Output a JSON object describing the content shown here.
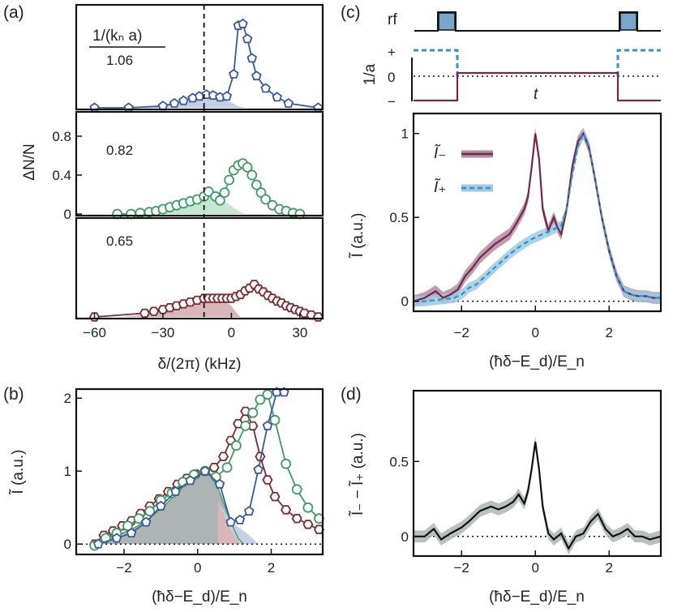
{
  "colors": {
    "blue": "#3a5a96",
    "blue_fill": "#c5d0e4",
    "green": "#3f9a68",
    "green_fill": "#c7e6d2",
    "red": "#7a2a33",
    "red_fill": "#d8b6ba",
    "purple_line": "#6e2a4a",
    "purple_band": "#b58aa2",
    "cyan_line": "#3a8fc0",
    "cyan_band": "#9ccbe3",
    "gray_fill": "#aeb4b4",
    "black": "#111111",
    "rf_pulse": "#7aa6cc"
  },
  "chart_data": [
    {
      "id": "a",
      "type": "line",
      "panel_label": "(a)",
      "xlabel": "δ/(2π) (kHz)",
      "ylabel": "ΔN/N",
      "xlim": [
        -68,
        40
      ],
      "xticks": [
        -60,
        -30,
        0,
        30
      ],
      "xtick_labels": [
        "−60",
        "−30",
        "0",
        "30"
      ],
      "ylim": [
        0,
        1
      ],
      "yticks": [
        0,
        0.4,
        0.8
      ],
      "ytick_labels": [
        "0",
        "0.4",
        "0.8"
      ],
      "legend_title": "1/(kₙ a)",
      "dashed_line_x": -12,
      "series": [
        {
          "name": "1.06",
          "color": "blue",
          "marker": "pentagon",
          "x": [
            -60,
            -45,
            -30,
            -25,
            -21,
            -17,
            -14,
            -11,
            -8,
            -5,
            -2,
            1,
            3,
            5,
            7,
            9,
            11,
            15,
            20,
            25,
            38
          ],
          "y": [
            0.0,
            0.0,
            0.02,
            0.05,
            0.08,
            0.11,
            0.13,
            0.15,
            0.14,
            0.12,
            0.13,
            0.38,
            0.93,
            0.95,
            0.78,
            0.56,
            0.36,
            0.22,
            0.12,
            0.05,
            0.0
          ],
          "fill_x": [
            -50,
            -40,
            -32,
            -26,
            -22,
            -18,
            -15,
            -12,
            -9,
            -6,
            -3,
            0,
            2,
            4,
            6
          ],
          "fill_y": [
            0.0,
            0.01,
            0.02,
            0.04,
            0.07,
            0.1,
            0.14,
            0.17,
            0.15,
            0.12,
            0.09,
            0.06,
            0.03,
            0.01,
            0.0
          ]
        },
        {
          "name": "0.82",
          "color": "green",
          "marker": "circle",
          "x": [
            -50,
            -44,
            -40,
            -36,
            -33,
            -30,
            -27,
            -24,
            -21,
            -18,
            -15,
            -12,
            -10,
            -7,
            -5,
            -3,
            -1,
            1,
            3,
            5,
            7,
            9,
            11,
            13,
            15,
            18,
            21,
            24,
            27,
            30
          ],
          "y": [
            0.0,
            0.0,
            0.01,
            0.02,
            0.03,
            0.05,
            0.07,
            0.09,
            0.11,
            0.13,
            0.15,
            0.18,
            0.23,
            0.18,
            0.14,
            0.22,
            0.35,
            0.45,
            0.5,
            0.52,
            0.48,
            0.4,
            0.3,
            0.22,
            0.15,
            0.09,
            0.05,
            0.03,
            0.01,
            0.0
          ],
          "fill_x": [
            -50,
            -40,
            -33,
            -28,
            -24,
            -20,
            -16,
            -13,
            -10,
            -7,
            -4,
            -1,
            2,
            4,
            6
          ],
          "fill_y": [
            0.0,
            0.01,
            0.03,
            0.06,
            0.09,
            0.12,
            0.16,
            0.2,
            0.24,
            0.2,
            0.15,
            0.1,
            0.05,
            0.02,
            0.0
          ]
        },
        {
          "name": "0.65",
          "color": "red",
          "marker": "hexagon",
          "x": [
            -60,
            -38,
            -34,
            -30,
            -27,
            -24,
            -21,
            -18,
            -15,
            -12,
            -10,
            -8,
            -6,
            -4,
            -2,
            0,
            2,
            4,
            6,
            8,
            10,
            12,
            14,
            16,
            18,
            20,
            22,
            24,
            26,
            28,
            30,
            32,
            35,
            38
          ],
          "y": [
            0.0,
            0.04,
            0.06,
            0.08,
            0.1,
            0.12,
            0.14,
            0.16,
            0.18,
            0.2,
            0.2,
            0.2,
            0.2,
            0.2,
            0.2,
            0.2,
            0.22,
            0.24,
            0.28,
            0.31,
            0.35,
            0.3,
            0.27,
            0.23,
            0.2,
            0.17,
            0.15,
            0.12,
            0.1,
            0.08,
            0.06,
            0.04,
            0.02,
            0.0
          ],
          "fill_x": [
            -48,
            -40,
            -34,
            -28,
            -24,
            -20,
            -16,
            -12,
            -8,
            -4,
            0,
            2,
            4
          ],
          "fill_y": [
            0.0,
            0.02,
            0.05,
            0.09,
            0.13,
            0.17,
            0.2,
            0.22,
            0.22,
            0.19,
            0.12,
            0.05,
            0.0
          ]
        }
      ]
    },
    {
      "id": "b",
      "type": "line",
      "panel_label": "(b)",
      "xlabel": "(ħδ−E_d)/E_n",
      "ylabel": "Ĩ (a.u.)",
      "xlim": [
        -3.3,
        3.4
      ],
      "xticks": [
        -2,
        0,
        2
      ],
      "xtick_labels": [
        "−2",
        "0",
        "2"
      ],
      "ylim": [
        -0.12,
        2.08
      ],
      "yticks": [
        0,
        1,
        2
      ],
      "ytick_labels": [
        "0",
        "1",
        "2"
      ],
      "series": [
        {
          "name": "0.65",
          "color": "red",
          "marker": "hexagon",
          "x": [
            -2.8,
            -2.55,
            -2.3,
            -2.05,
            -1.8,
            -1.55,
            -1.3,
            -1.05,
            -0.8,
            -0.55,
            -0.3,
            -0.05,
            0.2,
            0.45,
            0.7,
            0.9,
            1.1,
            1.3,
            1.5,
            1.7,
            1.9,
            2.1,
            2.4,
            2.7,
            3.0,
            3.3
          ],
          "y": [
            0.0,
            0.12,
            0.18,
            0.25,
            0.32,
            0.42,
            0.52,
            0.62,
            0.72,
            0.82,
            0.9,
            0.96,
            1.0,
            1.05,
            1.2,
            1.42,
            1.65,
            1.82,
            1.62,
            1.2,
            0.88,
            0.65,
            0.47,
            0.35,
            0.27,
            0.2
          ]
        },
        {
          "name": "0.82",
          "color": "green",
          "marker": "circle",
          "x": [
            -2.8,
            -2.5,
            -2.2,
            -1.9,
            -1.6,
            -1.3,
            -1.0,
            -0.7,
            -0.4,
            -0.1,
            0.2,
            0.5,
            0.8,
            1.05,
            1.3,
            1.5,
            1.7,
            1.9,
            2.1,
            2.4,
            2.7,
            3.0,
            3.3
          ],
          "y": [
            -0.02,
            0.08,
            0.15,
            0.25,
            0.35,
            0.45,
            0.6,
            0.7,
            0.85,
            0.95,
            1.0,
            0.92,
            1.05,
            1.35,
            1.62,
            1.8,
            1.98,
            2.05,
            1.7,
            1.1,
            0.75,
            0.5,
            0.35
          ]
        },
        {
          "name": "1.06",
          "color": "blue",
          "marker": "pentagon",
          "x": [
            -2.7,
            -2.2,
            -1.8,
            -1.4,
            -1.0,
            -0.6,
            -0.2,
            0.2,
            0.6,
            0.9,
            1.15,
            1.4,
            1.65,
            1.9,
            2.15,
            2.35
          ],
          "y": [
            0.0,
            0.08,
            0.15,
            0.3,
            0.52,
            0.72,
            0.87,
            1.0,
            0.82,
            0.3,
            0.33,
            0.45,
            1.02,
            1.62,
            2.08,
            2.1
          ]
        }
      ],
      "fills": [
        {
          "name": "gray",
          "color": "gray_fill",
          "x": [
            -2.9,
            -2.6,
            -2.2,
            -1.8,
            -1.4,
            -1.0,
            -0.6,
            -0.2,
            0.1,
            0.3,
            0.55,
            0.75,
            0.95,
            1.1,
            1.25
          ],
          "y": [
            0.0,
            0.05,
            0.12,
            0.2,
            0.32,
            0.48,
            0.68,
            0.88,
            1.0,
            0.98,
            0.78,
            0.5,
            0.25,
            0.08,
            0.0
          ]
        },
        {
          "name": "blue-tail",
          "color": "blue_fill",
          "x": [
            0.6,
            0.9,
            1.2,
            1.45,
            1.65
          ],
          "y": [
            0.55,
            0.3,
            0.2,
            0.1,
            0.0
          ]
        },
        {
          "name": "red-tail",
          "color": "red_fill",
          "x": [
            0.55,
            0.8,
            1.0,
            1.15
          ],
          "y": [
            0.6,
            0.3,
            0.12,
            0.0
          ]
        }
      ]
    },
    {
      "id": "c",
      "type": "line",
      "panel_label": "(c)",
      "xlabel": "(ħδ−E_d)/E_n",
      "ylabel": "Ĩ (a.u.)",
      "xlim": [
        -3.3,
        3.4
      ],
      "xticks": [
        -2,
        0,
        2
      ],
      "xtick_labels": [
        "−2",
        "0",
        "2"
      ],
      "ylim": [
        -0.05,
        1.1
      ],
      "yticks": [
        0,
        0.5,
        1
      ],
      "ytick_labels": [
        "0",
        "0.5",
        "1"
      ],
      "inset": {
        "row_labels": [
          "rf",
          "1/a"
        ],
        "level_labels": [
          "+",
          "0",
          "−"
        ],
        "time_label": "t"
      },
      "legend": [
        "Ĩ₋",
        "Ĩ₊"
      ],
      "series": [
        {
          "name": "Ĩ₋",
          "color": "purple_line",
          "band_color": "purple_band",
          "band": 0.035,
          "x": [
            -3.3,
            -3.0,
            -2.7,
            -2.5,
            -2.3,
            -2.1,
            -1.9,
            -1.7,
            -1.5,
            -1.3,
            -1.1,
            -0.9,
            -0.7,
            -0.5,
            -0.3,
            -0.2,
            -0.1,
            0.0,
            0.1,
            0.2,
            0.35,
            0.5,
            0.6,
            0.7,
            0.85,
            1.0,
            1.15,
            1.3,
            1.45,
            1.6,
            1.8,
            2.0,
            2.2,
            2.4,
            2.6,
            2.8,
            3.0,
            3.2,
            3.4
          ],
          "y": [
            0.0,
            0.02,
            0.06,
            0.02,
            0.04,
            0.07,
            0.15,
            0.2,
            0.26,
            0.3,
            0.34,
            0.37,
            0.4,
            0.47,
            0.55,
            0.62,
            0.8,
            1.0,
            0.85,
            0.55,
            0.42,
            0.5,
            0.44,
            0.4,
            0.55,
            0.8,
            0.95,
            1.0,
            0.92,
            0.75,
            0.5,
            0.3,
            0.15,
            0.06,
            0.04,
            0.03,
            0.03,
            0.02,
            0.02
          ]
        },
        {
          "name": "Ĩ₊",
          "color": "cyan_line",
          "band_color": "cyan_band",
          "band": 0.03,
          "x": [
            -3.3,
            -3.0,
            -2.6,
            -2.2,
            -2.0,
            -1.8,
            -1.6,
            -1.3,
            -1.0,
            -0.7,
            -0.4,
            -0.1,
            0.2,
            0.5,
            0.7,
            0.85,
            1.0,
            1.15,
            1.3,
            1.45,
            1.6,
            1.8,
            2.0,
            2.2,
            2.4,
            2.6,
            2.8,
            3.0,
            3.2,
            3.4
          ],
          "y": [
            0.0,
            0.0,
            0.01,
            0.02,
            0.04,
            0.08,
            0.1,
            0.16,
            0.22,
            0.28,
            0.33,
            0.37,
            0.4,
            0.43,
            0.45,
            0.55,
            0.75,
            0.92,
            1.0,
            0.93,
            0.75,
            0.5,
            0.3,
            0.15,
            0.06,
            0.04,
            0.03,
            0.03,
            0.02,
            0.02
          ]
        }
      ]
    },
    {
      "id": "d",
      "type": "line",
      "panel_label": "(d)",
      "xlabel": "(ħδ−E_d)/E_n",
      "ylabel": "Ĩ₋ − Ĩ₊ (a.u.)",
      "xlim": [
        -3.3,
        3.4
      ],
      "xticks": [
        -2,
        0,
        2
      ],
      "xtick_labels": [
        "−2",
        "0",
        "2"
      ],
      "ylim": [
        -0.12,
        0.95
      ],
      "yticks": [
        0,
        0.5
      ],
      "ytick_labels": [
        "0",
        "0.5"
      ],
      "series": [
        {
          "name": "difference",
          "color": "black",
          "band_color": "gray_fill",
          "band": 0.04,
          "x": [
            -3.3,
            -3.0,
            -2.75,
            -2.55,
            -2.3,
            -2.0,
            -1.8,
            -1.5,
            -1.2,
            -1.0,
            -0.8,
            -0.6,
            -0.45,
            -0.3,
            -0.2,
            -0.1,
            0.0,
            0.1,
            0.2,
            0.35,
            0.5,
            0.7,
            0.9,
            1.1,
            1.3,
            1.5,
            1.7,
            1.9,
            2.1,
            2.3,
            2.5,
            2.7,
            2.9,
            3.1,
            3.4
          ],
          "y": [
            0.0,
            0.0,
            0.05,
            -0.02,
            0.02,
            0.06,
            0.1,
            0.17,
            0.2,
            0.18,
            0.2,
            0.23,
            0.28,
            0.22,
            0.3,
            0.45,
            0.63,
            0.45,
            0.2,
            0.02,
            -0.02,
            0.02,
            -0.08,
            0.0,
            0.02,
            0.1,
            0.15,
            0.05,
            0.0,
            0.02,
            0.05,
            0.0,
            0.0,
            -0.02,
            0.0
          ]
        }
      ]
    }
  ]
}
